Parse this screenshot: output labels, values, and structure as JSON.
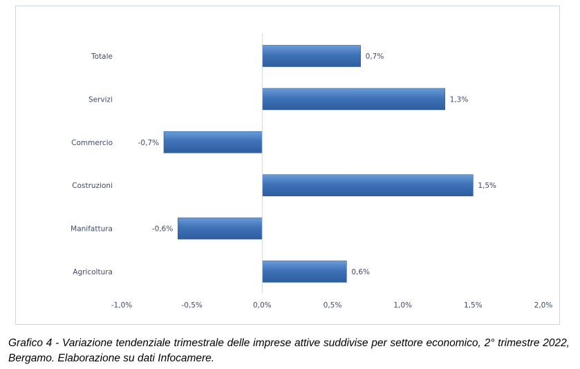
{
  "caption": "Grafico 4 - Variazione tendenziale trimestrale delle imprese attive suddivise per settore economico, 2° trimestre 2022, Bergamo. Elaborazione su dati Infocamere.",
  "chart_data": {
    "type": "bar",
    "orientation": "horizontal",
    "categories": [
      "Totale",
      "Servizi",
      "Commercio",
      "Costruzioni",
      "Manifattura",
      "Agricoltura"
    ],
    "values": [
      0.7,
      1.3,
      -0.7,
      1.5,
      -0.6,
      0.6
    ],
    "data_labels": [
      "0,7%",
      "1,3%",
      "-0,7%",
      "1,5%",
      "-0,6%",
      "0,6%"
    ],
    "xlim": [
      -1.0,
      2.0
    ],
    "x_ticks": [
      -1.0,
      -0.5,
      0.0,
      0.5,
      1.0,
      1.5,
      2.0
    ],
    "x_tick_labels": [
      "-1,0%",
      "-0,5%",
      "0,0%",
      "0,5%",
      "1,0%",
      "1,5%",
      "2,0%"
    ],
    "grid": false,
    "legend": "none",
    "bar_color": "#3f72b8",
    "bar_color_light": "#5d8fd0",
    "axis_color": "#d0d8e4",
    "text_color": "#3f4a6b"
  }
}
